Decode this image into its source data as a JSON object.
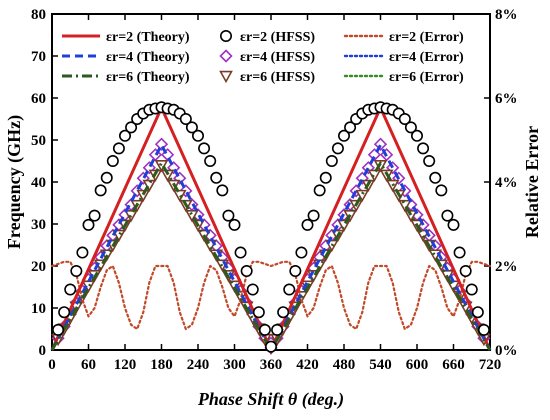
{
  "chart_data": {
    "type": "line",
    "xlabel": "Phase Shift θ (deg.)",
    "ylabel": "Frequency (GHz)",
    "y2label": "Relative Error",
    "xlim": [
      0,
      720
    ],
    "ylim": [
      0,
      80
    ],
    "y2lim": [
      0,
      8
    ],
    "xticks": [
      0,
      60,
      120,
      180,
      240,
      300,
      360,
      420,
      480,
      540,
      600,
      660,
      720
    ],
    "yticks": [
      0,
      10,
      20,
      30,
      40,
      50,
      60,
      70,
      80
    ],
    "y2ticks": [
      "0%",
      "2%",
      "4%",
      "6%",
      "8%"
    ],
    "y2tick_values": [
      0,
      2,
      4,
      6,
      8
    ],
    "grid": false,
    "legend_position": "top",
    "legend": [
      [
        "εr=2 (Theory)",
        "εr=2 (HFSS)",
        "εr=2 (Error)"
      ],
      [
        "εr=4 (Theory)",
        "εr=4 (HFSS)",
        "εr=4 (Error)"
      ],
      [
        "εr=6 (Theory)",
        "εr=6 (HFSS)",
        "εr=6 (Error)"
      ]
    ],
    "series": [
      {
        "name": "εr=2 (Theory)",
        "style": "solid",
        "color": "#d42020",
        "axis": "left",
        "x": [
          0,
          180,
          360,
          540,
          720
        ],
        "y": [
          0,
          57.7,
          0,
          57.7,
          0
        ]
      },
      {
        "name": "εr=4 (Theory)",
        "style": "dashed",
        "color": "#1f3fd6",
        "axis": "left",
        "x": [
          0,
          180,
          360,
          540,
          720
        ],
        "y": [
          0,
          48.8,
          0,
          48.8,
          0
        ]
      },
      {
        "name": "εr=6 (Theory)",
        "style": "dashdot",
        "color": "#2d5a1e",
        "axis": "left",
        "x": [
          0,
          180,
          360,
          540,
          720
        ],
        "y": [
          0,
          44.5,
          0,
          44.5,
          0
        ]
      },
      {
        "name": "εr=2 (HFSS)",
        "marker": "circle",
        "color": "#000000",
        "axis": "left",
        "x": [
          10,
          20,
          30,
          40,
          50,
          60,
          70,
          80,
          90,
          100,
          110,
          120,
          130,
          140,
          150,
          160,
          170,
          180,
          190,
          200,
          210,
          220,
          230,
          240,
          250,
          260,
          270,
          280,
          290,
          300,
          310,
          320,
          330,
          340,
          350,
          360,
          370,
          380,
          390,
          400,
          410,
          420,
          430,
          440,
          450,
          460,
          470,
          480,
          490,
          500,
          510,
          520,
          530,
          540,
          550,
          560,
          570,
          580,
          590,
          600,
          610,
          620,
          630,
          640,
          650,
          660,
          670,
          680,
          690,
          700,
          710
        ],
        "y": [
          4.8,
          9.0,
          14.4,
          18.8,
          23.2,
          29.8,
          32.0,
          38.0,
          41.0,
          45.0,
          48.0,
          51.0,
          53.0,
          55.0,
          56.3,
          57.2,
          57.5,
          57.8,
          57.5,
          57.2,
          56.3,
          55.0,
          53.0,
          51.0,
          48.0,
          45.0,
          41.0,
          38.0,
          32.0,
          29.8,
          23.2,
          18.8,
          14.4,
          9.0,
          4.8,
          0.8,
          4.8,
          9.0,
          14.4,
          18.8,
          23.2,
          29.8,
          32.0,
          38.0,
          41.0,
          45.0,
          48.0,
          51.0,
          53.0,
          55.0,
          56.3,
          57.2,
          57.5,
          57.8,
          57.5,
          57.2,
          56.3,
          55.0,
          53.0,
          51.0,
          48.0,
          45.0,
          41.0,
          38.0,
          32.0,
          29.8,
          23.2,
          18.8,
          14.4,
          9.0,
          4.8
        ]
      },
      {
        "name": "εr=4 (HFSS)",
        "marker": "diamond",
        "color": "#a030c0",
        "axis": "left",
        "x": [
          10,
          20,
          30,
          40,
          50,
          60,
          70,
          80,
          90,
          100,
          110,
          120,
          130,
          140,
          150,
          160,
          170,
          180,
          190,
          200,
          210,
          220,
          230,
          240,
          250,
          260,
          270,
          280,
          290,
          300,
          310,
          320,
          330,
          340,
          350,
          360,
          370,
          380,
          390,
          400,
          410,
          420,
          430,
          440,
          450,
          460,
          470,
          480,
          490,
          500,
          510,
          520,
          530,
          540,
          550,
          560,
          570,
          580,
          590,
          600,
          610,
          620,
          630,
          640,
          650,
          660,
          670,
          680,
          690,
          700,
          710
        ],
        "y": [
          2.8,
          5.6,
          8.5,
          11.3,
          14.1,
          16.8,
          19.5,
          22.1,
          24.8,
          27.3,
          29.8,
          32.2,
          34.6,
          37.9,
          40.9,
          43.4,
          46.5,
          49.0,
          46.5,
          43.4,
          40.9,
          37.9,
          34.6,
          32.2,
          29.8,
          27.3,
          24.8,
          22.1,
          19.5,
          16.8,
          14.1,
          11.3,
          8.5,
          5.6,
          2.8,
          0.5,
          2.8,
          5.6,
          8.5,
          11.3,
          14.1,
          16.8,
          19.5,
          22.1,
          24.8,
          27.3,
          29.8,
          32.2,
          34.6,
          37.9,
          40.9,
          43.4,
          46.5,
          49.0,
          46.5,
          43.4,
          40.9,
          37.9,
          34.6,
          32.2,
          29.8,
          27.3,
          24.8,
          22.1,
          19.5,
          16.8,
          14.1,
          11.3,
          8.5,
          5.6,
          2.8
        ]
      },
      {
        "name": "εr=6 (HFSS)",
        "marker": "triangle-down",
        "color": "#7a3b26",
        "axis": "left",
        "x": [
          10,
          20,
          30,
          40,
          50,
          60,
          70,
          80,
          90,
          100,
          110,
          120,
          130,
          140,
          150,
          160,
          170,
          180,
          190,
          200,
          210,
          220,
          230,
          240,
          250,
          260,
          270,
          280,
          290,
          300,
          310,
          320,
          330,
          340,
          350,
          360,
          370,
          380,
          390,
          400,
          410,
          420,
          430,
          440,
          450,
          460,
          470,
          480,
          490,
          500,
          510,
          520,
          530,
          540,
          550,
          560,
          570,
          580,
          590,
          600,
          610,
          620,
          630,
          640,
          650,
          660,
          670,
          680,
          690,
          700,
          710
        ],
        "y": [
          2.6,
          5.1,
          7.7,
          10.3,
          12.8,
          15.3,
          17.8,
          20.3,
          22.7,
          25.0,
          27.4,
          29.8,
          32.1,
          34.5,
          36.9,
          39.3,
          41.7,
          44.0,
          41.7,
          39.3,
          36.9,
          34.5,
          32.1,
          29.8,
          27.4,
          25.0,
          22.7,
          20.3,
          17.8,
          15.3,
          12.8,
          10.3,
          7.7,
          5.1,
          2.6,
          0.5,
          2.6,
          5.1,
          7.7,
          10.3,
          12.8,
          15.3,
          17.8,
          20.3,
          22.7,
          25.0,
          27.4,
          29.8,
          32.1,
          34.5,
          36.9,
          39.3,
          41.7,
          44.0,
          41.7,
          39.3,
          36.9,
          34.5,
          32.1,
          29.8,
          27.4,
          25.0,
          22.7,
          20.3,
          17.8,
          15.3,
          12.8,
          10.3,
          7.7,
          5.1,
          2.6
        ]
      },
      {
        "name": "εr=2 (Error)",
        "style": "dotted",
        "color": "#c24a2a",
        "axis": "right",
        "x": [
          0,
          10,
          20,
          30,
          40,
          50,
          60,
          70,
          80,
          90,
          100,
          110,
          120,
          130,
          140,
          150,
          160,
          170,
          180,
          190,
          200,
          210,
          220,
          230,
          240,
          250,
          260,
          270,
          280,
          290,
          300,
          310,
          320,
          330,
          340,
          350,
          360,
          370,
          380,
          390,
          400,
          410,
          420,
          430,
          440,
          450,
          460,
          470,
          480,
          490,
          500,
          510,
          520,
          530,
          540,
          550,
          560,
          570,
          580,
          590,
          600,
          610,
          620,
          630,
          640,
          650,
          660,
          670,
          680,
          690,
          700,
          710,
          720
        ],
        "y": [
          2.0,
          2.05,
          2.1,
          2.1,
          1.8,
          1.2,
          0.8,
          1.0,
          1.5,
          1.9,
          2.0,
          1.6,
          1.0,
          0.6,
          0.5,
          0.9,
          1.6,
          2.0,
          2.0,
          2.0,
          1.6,
          0.9,
          0.5,
          0.6,
          1.0,
          1.6,
          2.0,
          1.9,
          1.5,
          1.0,
          0.8,
          1.2,
          1.8,
          2.1,
          2.1,
          2.05,
          2.0,
          2.05,
          2.1,
          2.1,
          1.8,
          1.2,
          0.8,
          1.0,
          1.5,
          1.9,
          2.0,
          1.6,
          1.0,
          0.6,
          0.5,
          0.9,
          1.6,
          2.0,
          2.0,
          2.0,
          1.6,
          0.9,
          0.5,
          0.6,
          1.0,
          1.6,
          2.0,
          1.9,
          1.5,
          1.0,
          0.8,
          1.2,
          1.8,
          2.1,
          2.1,
          2.05,
          2.0
        ]
      },
      {
        "name": "εr=4 (Error)",
        "style": "dotted",
        "color": "#1f3fd6",
        "axis": "right",
        "x": [
          0,
          10,
          20,
          30,
          40,
          50,
          60,
          70,
          80,
          90,
          100,
          110,
          120,
          130,
          140,
          150,
          160,
          170,
          180,
          190,
          200,
          210,
          220,
          230,
          240,
          250,
          260,
          270,
          280,
          290,
          300,
          310,
          320,
          330,
          340,
          350,
          360,
          370,
          380,
          390,
          400,
          410,
          420,
          430,
          440,
          450,
          460,
          470,
          480,
          490,
          500,
          510,
          520,
          530,
          540,
          550,
          560,
          570,
          580,
          590,
          600,
          610,
          620,
          630,
          640,
          650,
          660,
          670,
          680,
          690,
          700,
          710,
          720
        ],
        "y": [
          0.9,
          0.6,
          0.9,
          1.4,
          1.8,
          1.6,
          1.0,
          0.5,
          0.6,
          1.2,
          1.75,
          1.6,
          1.0,
          0.6,
          0.6,
          1.1,
          1.6,
          1.7,
          1.5,
          1.7,
          1.6,
          1.1,
          0.6,
          0.6,
          1.0,
          1.6,
          1.75,
          1.2,
          0.6,
          0.5,
          1.0,
          1.6,
          1.8,
          1.4,
          0.9,
          0.6,
          0.9,
          0.6,
          0.9,
          1.4,
          1.8,
          1.6,
          1.0,
          0.5,
          0.6,
          1.2,
          1.75,
          1.6,
          1.0,
          0.6,
          0.6,
          1.1,
          1.6,
          1.7,
          1.5,
          1.7,
          1.6,
          1.1,
          0.6,
          0.6,
          1.0,
          1.6,
          1.75,
          1.2,
          0.6,
          0.5,
          1.0,
          1.6,
          1.8,
          1.4,
          0.9,
          0.6,
          0.9
        ]
      },
      {
        "name": "εr=6 (Error)",
        "style": "dotted",
        "color": "#3a8a2a",
        "axis": "right",
        "x": [
          0,
          10,
          20,
          30,
          40,
          50,
          60,
          70,
          80,
          90,
          100,
          110,
          120,
          130,
          140,
          150,
          160,
          170,
          180,
          190,
          200,
          210,
          220,
          230,
          240,
          250,
          260,
          270,
          280,
          290,
          300,
          310,
          320,
          330,
          340,
          350,
          360,
          370,
          380,
          390,
          400,
          410,
          420,
          430,
          440,
          450,
          460,
          470,
          480,
          490,
          500,
          510,
          520,
          530,
          540,
          550,
          560,
          570,
          580,
          590,
          600,
          610,
          620,
          630,
          640,
          650,
          660,
          670,
          680,
          690,
          700,
          710,
          720
        ],
        "y": [
          1.9,
          1.85,
          1.9,
          2.1,
          2.4,
          2.2,
          1.6,
          1.2,
          1.6,
          2.3,
          2.55,
          2.2,
          1.6,
          1.4,
          1.8,
          2.4,
          2.5,
          2.1,
          1.8,
          2.1,
          2.5,
          2.4,
          1.8,
          1.4,
          1.6,
          2.2,
          2.55,
          2.3,
          1.6,
          1.2,
          1.6,
          2.2,
          2.4,
          2.1,
          1.9,
          1.85,
          1.9,
          1.85,
          1.9,
          2.1,
          2.4,
          2.2,
          1.6,
          1.2,
          1.6,
          2.3,
          2.55,
          2.2,
          1.6,
          1.4,
          1.8,
          2.4,
          2.5,
          2.1,
          1.8,
          2.1,
          2.5,
          2.4,
          1.8,
          1.4,
          1.6,
          2.2,
          2.55,
          2.3,
          1.6,
          1.2,
          1.6,
          2.2,
          2.4,
          2.1,
          1.9,
          1.85,
          1.9
        ]
      }
    ]
  }
}
